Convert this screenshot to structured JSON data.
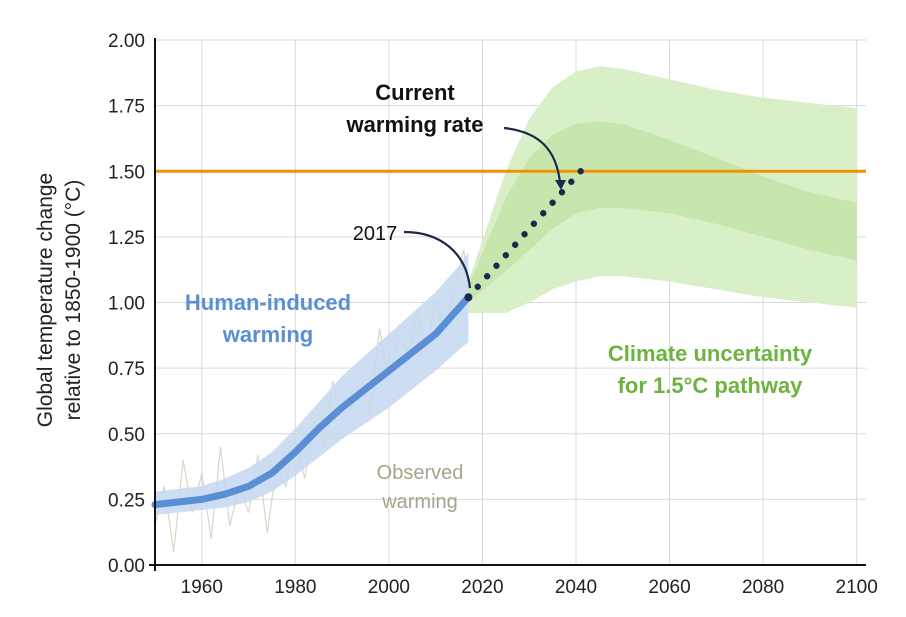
{
  "chart_data": {
    "type": "line",
    "ylabel": [
      "Global temperature change",
      "relative to 1850-1900 (°C)"
    ],
    "xlim": [
      1950,
      2102
    ],
    "ylim": [
      0,
      2.0
    ],
    "x_ticks": [
      1960,
      1980,
      2000,
      2020,
      2040,
      2060,
      2080,
      2100
    ],
    "y_ticks": [
      0.0,
      0.25,
      0.5,
      0.75,
      1.0,
      1.25,
      1.5,
      1.75,
      2.0
    ],
    "y_tick_labels": [
      "0.00",
      "0.25",
      "0.50",
      "0.75",
      "1.00",
      "1.25",
      "1.50",
      "1.75",
      "2.00"
    ],
    "grid": true,
    "threshold": {
      "value": 1.5,
      "label": "1.50",
      "color": "#f39200"
    },
    "series": [
      {
        "name": "Human-induced warming",
        "color": "#5b8fd4",
        "x": [
          1950,
          1955,
          1960,
          1965,
          1970,
          1975,
          1980,
          1985,
          1990,
          1995,
          2000,
          2005,
          2010,
          2015,
          2017
        ],
        "values": [
          0.23,
          0.24,
          0.25,
          0.27,
          0.3,
          0.35,
          0.43,
          0.52,
          0.6,
          0.67,
          0.74,
          0.81,
          0.88,
          0.98,
          1.02
        ],
        "band_lower": [
          0.19,
          0.2,
          0.21,
          0.22,
          0.24,
          0.28,
          0.34,
          0.41,
          0.48,
          0.54,
          0.6,
          0.67,
          0.74,
          0.82,
          0.85
        ],
        "band_upper": [
          0.28,
          0.29,
          0.3,
          0.33,
          0.37,
          0.43,
          0.52,
          0.62,
          0.72,
          0.8,
          0.88,
          0.96,
          1.04,
          1.14,
          1.19
        ]
      },
      {
        "name": "Current warming rate",
        "color": "#1b2a4a",
        "x": [
          2017,
          2041
        ],
        "values": [
          1.02,
          1.5
        ]
      },
      {
        "name": "Observed warming",
        "color": "#d9d6c8",
        "x": [
          1950,
          1952,
          1954,
          1956,
          1958,
          1960,
          1962,
          1964,
          1966,
          1968,
          1970,
          1972,
          1974,
          1976,
          1978,
          1980,
          1982,
          1984,
          1986,
          1988,
          1990,
          1992,
          1994,
          1996,
          1998,
          2000,
          2002,
          2004,
          2006,
          2008,
          2010,
          2012,
          2014,
          2016,
          2017
        ],
        "values": [
          0.15,
          0.3,
          0.05,
          0.4,
          0.2,
          0.35,
          0.1,
          0.45,
          0.15,
          0.3,
          0.2,
          0.42,
          0.12,
          0.38,
          0.3,
          0.48,
          0.33,
          0.55,
          0.45,
          0.7,
          0.55,
          0.6,
          0.72,
          0.58,
          0.9,
          0.7,
          0.88,
          0.8,
          0.95,
          0.82,
          1.0,
          0.9,
          1.05,
          1.2,
          1.05
        ]
      }
    ],
    "pathway_bands": {
      "x": [
        2017,
        2025,
        2030,
        2035,
        2040,
        2045,
        2050,
        2055,
        2060,
        2070,
        2080,
        2090,
        2100
      ],
      "outer_upper": [
        1.08,
        1.5,
        1.7,
        1.82,
        1.88,
        1.9,
        1.89,
        1.87,
        1.85,
        1.81,
        1.78,
        1.76,
        1.74
      ],
      "inner_upper": [
        1.06,
        1.4,
        1.55,
        1.64,
        1.68,
        1.69,
        1.68,
        1.65,
        1.62,
        1.55,
        1.48,
        1.42,
        1.38
      ],
      "inner_lower": [
        1.0,
        1.12,
        1.2,
        1.28,
        1.34,
        1.36,
        1.36,
        1.35,
        1.34,
        1.3,
        1.25,
        1.2,
        1.16
      ],
      "outer_lower": [
        0.96,
        0.96,
        1.0,
        1.05,
        1.08,
        1.1,
        1.1,
        1.09,
        1.08,
        1.05,
        1.02,
        1.0,
        0.98
      ],
      "outer_color": "#d9efc8",
      "inner_color": "#c6e6ad"
    },
    "annotations": {
      "current_warming_rate": [
        "Current",
        "warming rate"
      ],
      "year_2017": "2017",
      "human_induced": [
        "Human-induced",
        "warming"
      ],
      "climate_uncertainty": [
        "Climate uncertainty",
        "for 1.5°C pathway"
      ],
      "observed": [
        "Observed",
        "warming"
      ]
    },
    "colors": {
      "human": "#5b8fd4",
      "human_band": "#c6d8f0",
      "green_text": "#6cb33f",
      "observed_text": "#a8a38c",
      "dark": "#1b2a4a",
      "orange": "#f39200",
      "grid": "#d9d9d9"
    }
  }
}
